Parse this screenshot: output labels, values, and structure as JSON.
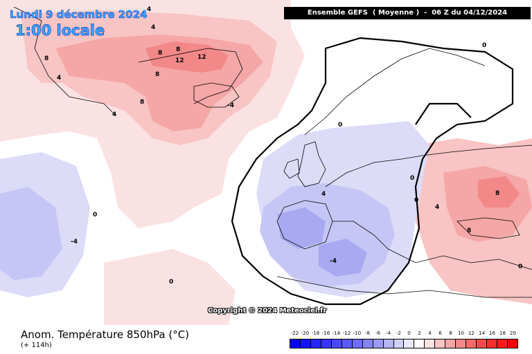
{
  "header": {
    "date_line": "Lundi 9 décembre 2024",
    "time_line": "1:00 locale",
    "run_banner": "Ensemble GEFS  ( Moyenne )  -  06 Z du 04/12/2024"
  },
  "copyright": "Copyright © 2024 Meteociel.fr",
  "legend": {
    "title": "Anom. Température 850hPa (°C)",
    "lead_time": "(+ 114h)",
    "ticks": [
      "-22",
      "-20",
      "-18",
      "-16",
      "-14",
      "-12",
      "-10",
      "-8",
      "-6",
      "-4",
      "-2",
      "0",
      "2",
      "4",
      "6",
      "8",
      "10",
      "12",
      "14",
      "16",
      "18",
      "20"
    ],
    "colors": [
      "#0000ff",
      "#1212ff",
      "#2424ff",
      "#3636ff",
      "#4848ff",
      "#5a5aff",
      "#6c6cff",
      "#8585f2",
      "#9c9cf5",
      "#b4b4f7",
      "#d0d0f9",
      "#e8e8fb",
      "#ffffff",
      "#fbe2e2",
      "#f8c4c4",
      "#f5a6a6",
      "#f28888",
      "#f26a6a",
      "#f44c4c",
      "#f72e2e",
      "#fa1a1a",
      "#ff0000"
    ]
  },
  "contour_labels": [
    "4",
    "8",
    "8",
    "12",
    "12",
    "8",
    "8",
    "4",
    "4",
    "-4",
    "8",
    "4",
    "0",
    "0",
    "0",
    "-4",
    "0",
    "4",
    "0",
    "4",
    "8",
    "8",
    "-4",
    "0",
    "0"
  ],
  "map_colors": {
    "warm_light": "#f8c4c4",
    "warm_mid": "#f5a6a6",
    "warm_strong": "#f28888",
    "cool_light": "#dcdcf9",
    "cool_mid": "#c6c6f6",
    "cool_strong": "#a9a9f2",
    "land": "#000000",
    "zero_line": "#000000"
  }
}
